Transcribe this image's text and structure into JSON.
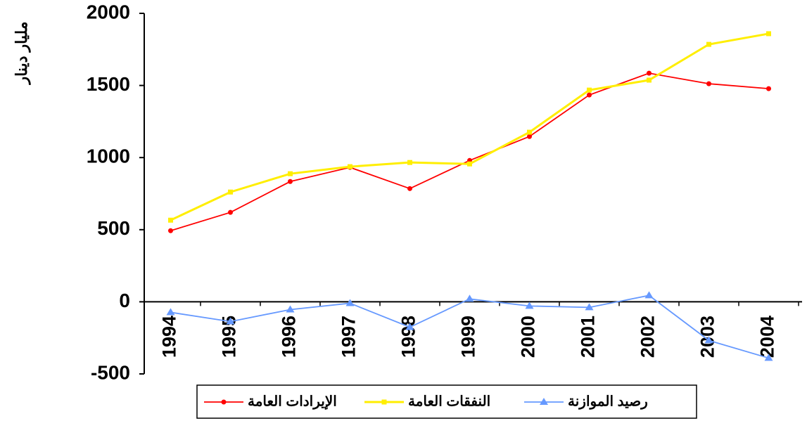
{
  "chart_data": {
    "type": "line",
    "ylabel": "مليار دينار",
    "categories": [
      "1994",
      "1995",
      "1996",
      "1997",
      "1998",
      "1999",
      "2000",
      "2001",
      "2002",
      "2003",
      "2004"
    ],
    "series": [
      {
        "name": "الإيرادات العامة",
        "color": "#ff0000",
        "marker": "circle",
        "values": [
          493,
          620,
          834,
          932,
          785,
          980,
          1146,
          1434,
          1585,
          1512,
          1478
        ]
      },
      {
        "name": "النفقات العامة",
        "color": "#ffee00",
        "marker": "square",
        "values": [
          566,
          761,
          888,
          937,
          966,
          956,
          1176,
          1468,
          1537,
          1785,
          1859
        ]
      },
      {
        "name": "رصيد الموازنة",
        "color": "#6699ff",
        "marker": "triangle",
        "values": [
          -73,
          -137,
          -54,
          -10,
          -176,
          20,
          -29,
          -39,
          44,
          -268,
          -390
        ]
      }
    ],
    "ylim": [
      -500,
      2000
    ],
    "yticks": [
      -500,
      0,
      500,
      1000,
      1500,
      2000
    ],
    "grid": false,
    "legend": "bottom"
  }
}
